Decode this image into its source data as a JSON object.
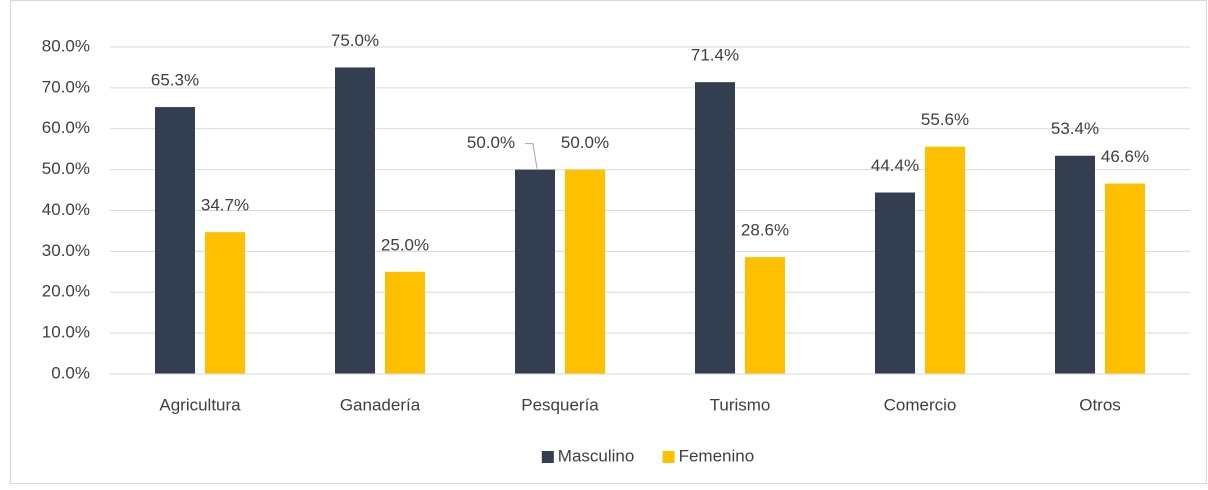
{
  "chart_data": {
    "type": "bar",
    "categories": [
      "Agricultura",
      "Ganadería",
      "Pesquería",
      "Turismo",
      "Comercio",
      "Otros"
    ],
    "series": [
      {
        "name": "Masculino",
        "color": "#333f50",
        "values": [
          65.3,
          75.0,
          50.0,
          71.4,
          44.4,
          53.4
        ],
        "value_labels": [
          "65.3%",
          "75.0%",
          "50.0%",
          "71.4%",
          "44.4%",
          "53.4%"
        ]
      },
      {
        "name": "Femenino",
        "color": "#ffc000",
        "values": [
          34.7,
          25.0,
          50.0,
          28.6,
          55.6,
          46.6
        ],
        "value_labels": [
          "34.7%",
          "25.0%",
          "50.0%",
          "28.6%",
          "55.6%",
          "46.6%"
        ]
      }
    ],
    "ylim": [
      0,
      80
    ],
    "yticks": [
      {
        "value": 0,
        "label": "0.0%"
      },
      {
        "value": 10,
        "label": "10.0%"
      },
      {
        "value": 20,
        "label": "20.0%"
      },
      {
        "value": 30,
        "label": "30.0%"
      },
      {
        "value": 40,
        "label": "40.0%"
      },
      {
        "value": 50,
        "label": "50.0%"
      },
      {
        "value": 60,
        "label": "60.0%"
      },
      {
        "value": 70,
        "label": "70.0%"
      },
      {
        "value": 80,
        "label": "80.0%"
      }
    ],
    "grid": true,
    "legend": "bottom"
  }
}
